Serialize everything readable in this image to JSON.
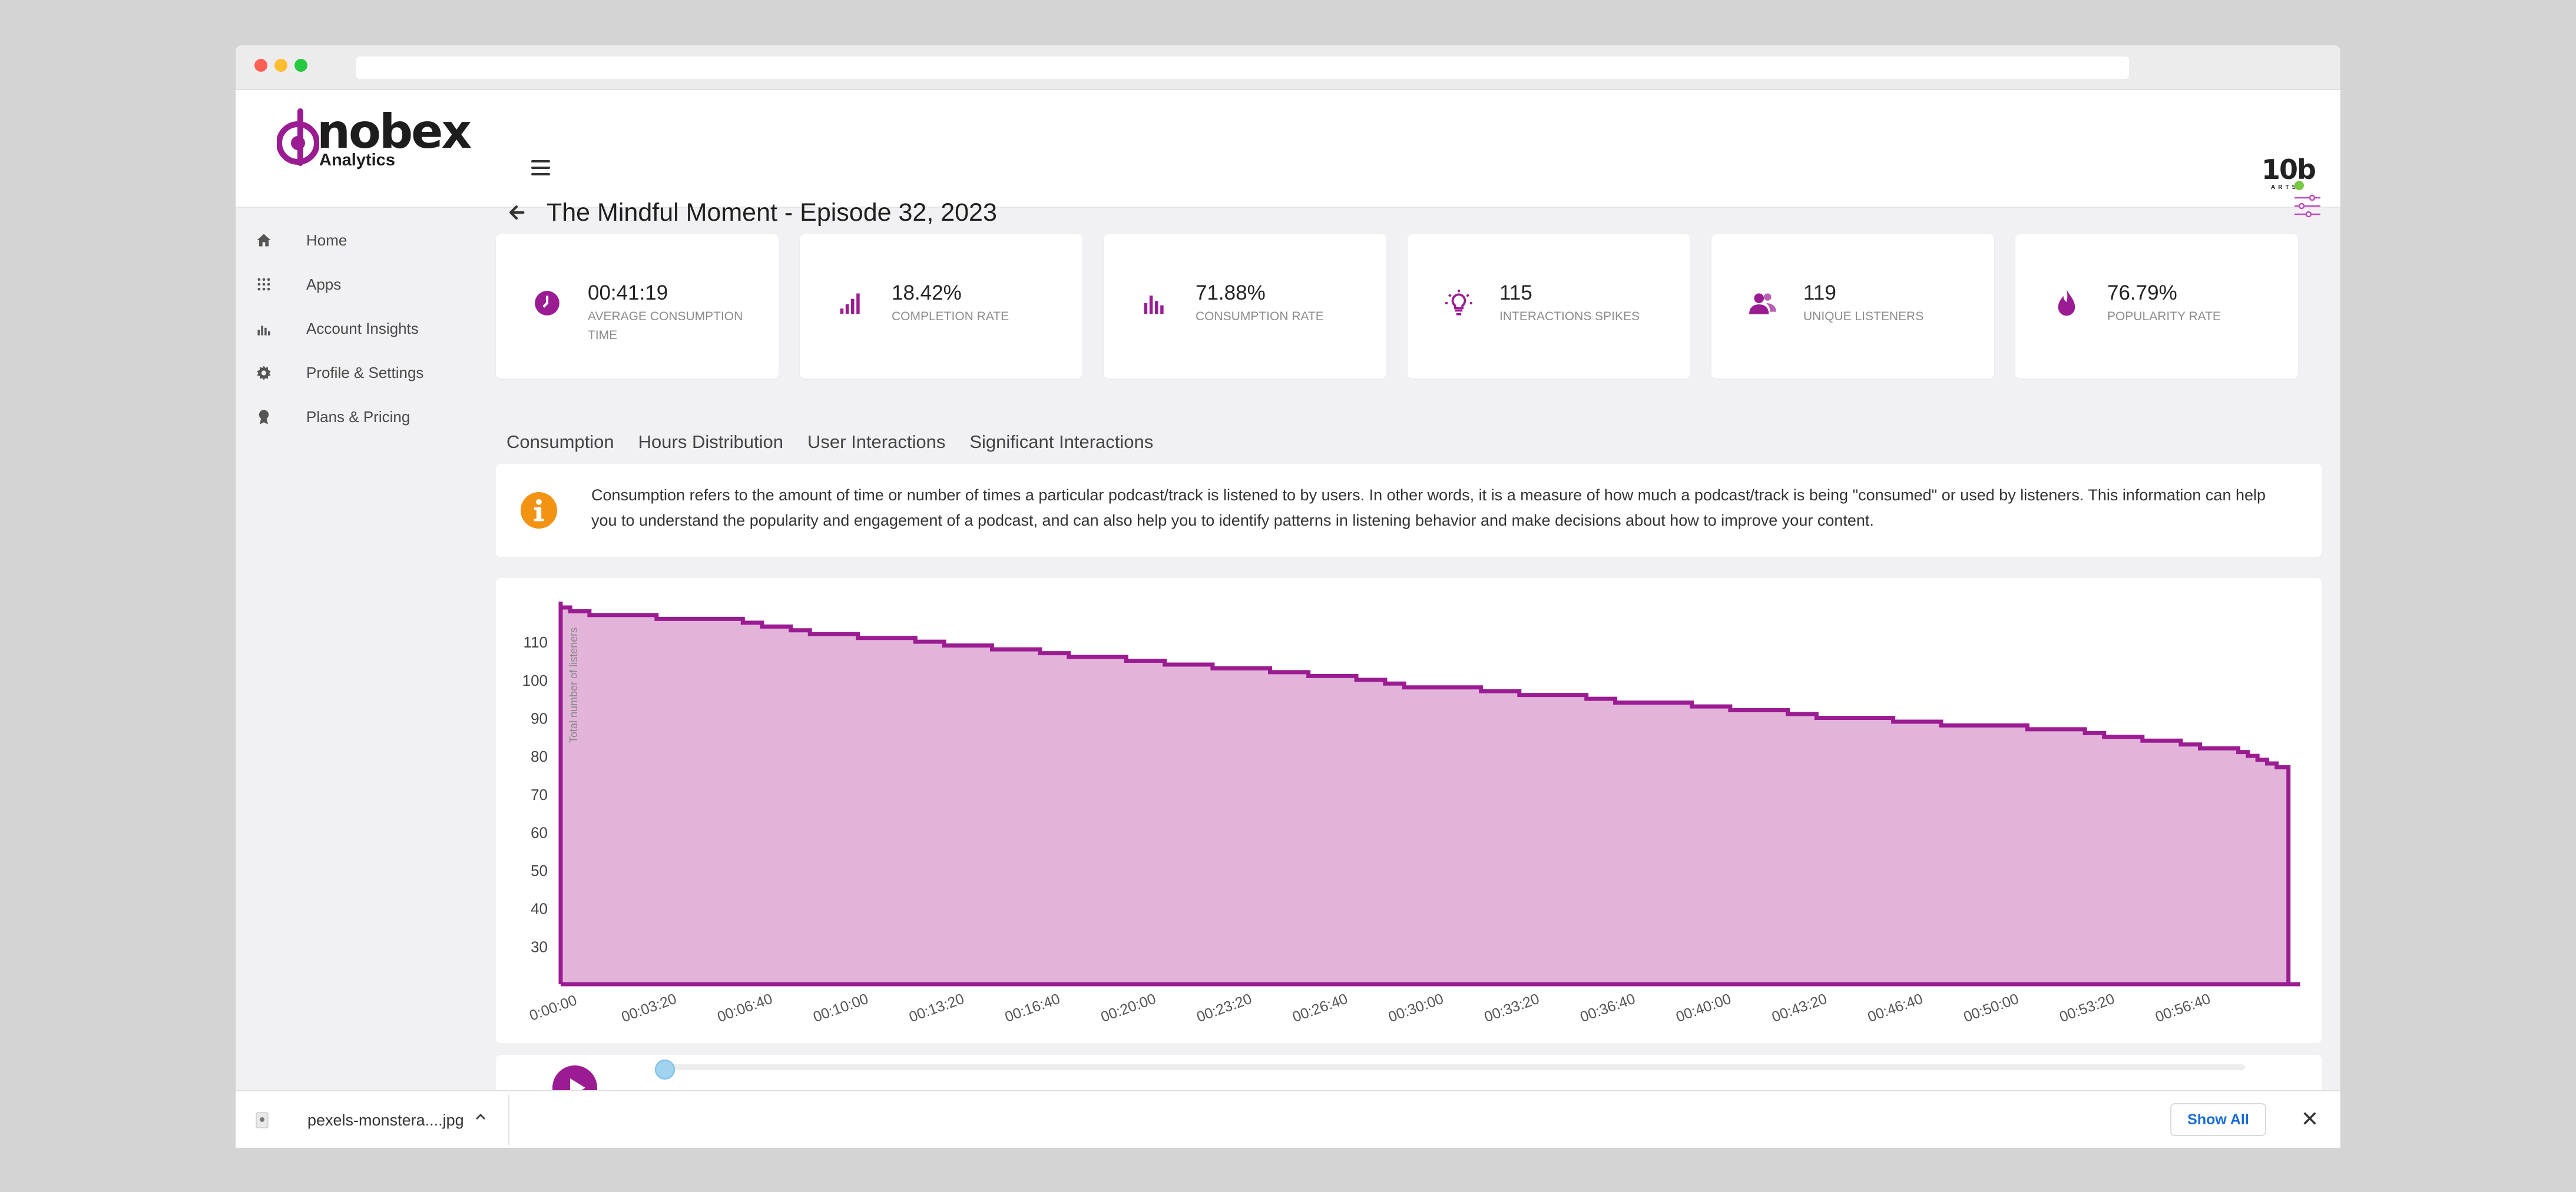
{
  "header": {
    "logo_word": "nobex",
    "logo_sub": "Analytics",
    "brand_right": "10b",
    "brand_right_sub": "ARTS"
  },
  "sidebar": {
    "items": [
      {
        "label": "Home",
        "icon": "home-icon"
      },
      {
        "label": "Apps",
        "icon": "apps-grid-icon"
      },
      {
        "label": "Account Insights",
        "icon": "bar-chart-icon"
      },
      {
        "label": "Profile & Settings",
        "icon": "gear-icon"
      },
      {
        "label": "Plans & Pricing",
        "icon": "badge-icon"
      }
    ]
  },
  "page": {
    "title": "The Mindful Moment - Episode 32, 2023"
  },
  "cards": [
    {
      "value": "00:41:19",
      "caption": "AVERAGE CONSUMPTION TIME",
      "icon": "clock-icon"
    },
    {
      "value": "18.42%",
      "caption": "COMPLETION RATE",
      "icon": "signal-bars-icon"
    },
    {
      "value": "71.88%",
      "caption": "CONSUMPTION RATE",
      "icon": "bar-chart-icon"
    },
    {
      "value": "115",
      "caption": "INTERACTIONS SPIKES",
      "icon": "lightbulb-icon"
    },
    {
      "value": "119",
      "caption": "UNIQUE LISTENERS",
      "icon": "users-icon"
    },
    {
      "value": "76.79%",
      "caption": "POPULARITY RATE",
      "icon": "flame-icon"
    }
  ],
  "tabs": [
    "Consumption",
    "Hours Distribution",
    "User Interactions",
    "Significant Interactions"
  ],
  "info": {
    "text": "Consumption refers to the amount of time or number of times a particular podcast/track is listened to by users. In other words, it is a measure of how much a podcast/track is being \"consumed\" or used by listeners. This information can help you to understand the popularity and engagement of a podcast, and can also help you to identify patterns in listening behavior and make decisions about how to improve your content."
  },
  "colors": {
    "accent": "#9b1c92",
    "area_fill": "#e2b4da",
    "info_orange": "#f39314",
    "show_all_blue": "#1a6bd8"
  },
  "chart_data": {
    "type": "area",
    "ylabel": "Total number of listeners",
    "xlabel": "",
    "ylim": [
      20,
      119
    ],
    "yticks": [
      30,
      40,
      50,
      60,
      70,
      80,
      90,
      100,
      110
    ],
    "xticks": [
      "0:00:00",
      "00:03:20",
      "00:06:40",
      "00:10:00",
      "00:13:20",
      "00:16:40",
      "00:20:00",
      "00:23:20",
      "00:26:40",
      "00:30:00",
      "00:33:20",
      "00:36:40",
      "00:40:00",
      "00:43:20",
      "00:46:40",
      "00:50:00",
      "00:53:20",
      "00:56:40"
    ],
    "x_seconds": [
      0,
      20,
      60,
      200,
      380,
      420,
      480,
      520,
      620,
      740,
      800,
      900,
      1000,
      1060,
      1180,
      1260,
      1360,
      1480,
      1560,
      1660,
      1720,
      1760,
      1920,
      2000,
      2140,
      2200,
      2360,
      2440,
      2560,
      2620,
      2780,
      2880,
      3060,
      3180,
      3220,
      3300,
      3380,
      3420,
      3500,
      3520,
      3540,
      3560,
      3580
    ],
    "values": [
      119,
      118,
      117,
      116,
      115,
      114,
      113,
      112,
      111,
      110,
      109,
      108,
      107,
      106,
      105,
      104,
      103,
      102,
      101,
      100,
      99,
      98,
      97,
      96,
      95,
      94,
      93,
      92,
      91,
      90,
      89,
      88,
      87,
      86,
      85,
      84,
      83,
      82,
      81,
      80,
      79,
      78,
      77
    ]
  },
  "player": {
    "progress": 0.0
  },
  "download": {
    "filename": "pexels-monstera....jpg",
    "show_all": "Show All"
  }
}
